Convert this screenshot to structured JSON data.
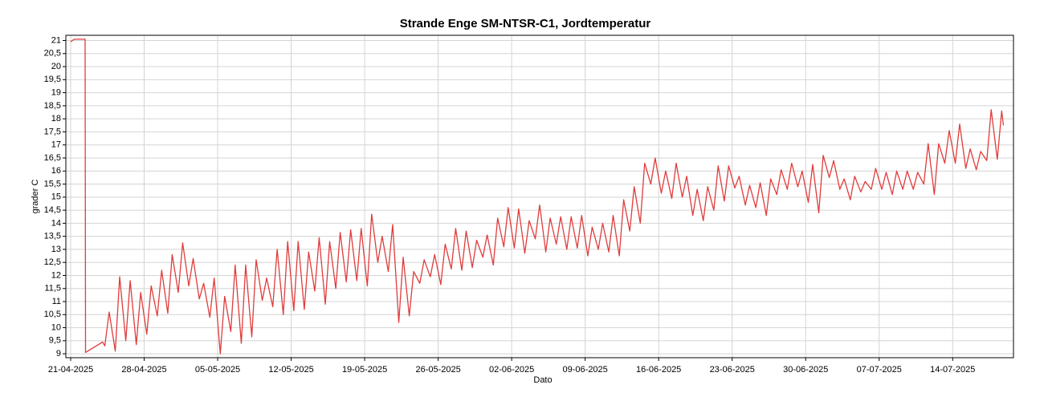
{
  "chart_data": {
    "type": "line",
    "title": "Strande Enge SM-NTSR-C1, Jordtemperatur",
    "xlabel": "Dato",
    "ylabel": "grader C",
    "x": [
      "2025-04-21 00:00",
      "2025-04-21 08:00",
      "2025-04-22 09:00",
      "2025-04-22 10:00",
      "2025-04-24 01:00",
      "2025-04-24 06:00",
      "2025-04-24 16:00",
      "2025-04-25 06:00",
      "2025-04-25 16:00",
      "2025-04-26 06:00",
      "2025-04-26 16:00",
      "2025-04-27 06:00",
      "2025-04-27 16:00",
      "2025-04-28 06:00",
      "2025-04-28 16:00",
      "2025-04-29 06:00",
      "2025-04-29 16:00",
      "2025-04-30 06:00",
      "2025-04-30 16:00",
      "2025-05-01 06:00",
      "2025-05-01 16:00",
      "2025-05-02 06:00",
      "2025-05-02 16:00",
      "2025-05-03 06:00",
      "2025-05-03 16:00",
      "2025-05-04 06:00",
      "2025-05-04 16:00",
      "2025-05-05 06:00",
      "2025-05-05 16:00",
      "2025-05-06 06:00",
      "2025-05-06 16:00",
      "2025-05-07 06:00",
      "2025-05-07 16:00",
      "2025-05-08 06:00",
      "2025-05-08 16:00",
      "2025-05-09 06:00",
      "2025-05-09 16:00",
      "2025-05-10 06:00",
      "2025-05-10 16:00",
      "2025-05-11 06:00",
      "2025-05-11 16:00",
      "2025-05-12 06:00",
      "2025-05-12 16:00",
      "2025-05-13 06:00",
      "2025-05-13 16:00",
      "2025-05-14 06:00",
      "2025-05-14 16:00",
      "2025-05-15 06:00",
      "2025-05-15 16:00",
      "2025-05-16 06:00",
      "2025-05-16 16:00",
      "2025-05-17 06:00",
      "2025-05-17 16:00",
      "2025-05-18 06:00",
      "2025-05-18 16:00",
      "2025-05-19 06:00",
      "2025-05-19 16:00",
      "2025-05-20 06:00",
      "2025-05-20 16:00",
      "2025-05-21 06:00",
      "2025-05-21 16:00",
      "2025-05-22 06:00",
      "2025-05-22 16:00",
      "2025-05-23 06:00",
      "2025-05-23 16:00",
      "2025-05-24 06:00",
      "2025-05-24 16:00",
      "2025-05-25 06:00",
      "2025-05-25 16:00",
      "2025-05-26 06:00",
      "2025-05-26 16:00",
      "2025-05-27 06:00",
      "2025-05-27 16:00",
      "2025-05-28 06:00",
      "2025-05-28 16:00",
      "2025-05-29 06:00",
      "2025-05-29 16:00",
      "2025-05-30 06:00",
      "2025-05-30 16:00",
      "2025-05-31 06:00",
      "2025-05-31 16:00",
      "2025-06-01 06:00",
      "2025-06-01 16:00",
      "2025-06-02 06:00",
      "2025-06-02 16:00",
      "2025-06-03 06:00",
      "2025-06-03 16:00",
      "2025-06-04 06:00",
      "2025-06-04 16:00",
      "2025-06-05 06:00",
      "2025-06-05 16:00",
      "2025-06-06 06:00",
      "2025-06-06 16:00",
      "2025-06-07 06:00",
      "2025-06-07 16:00",
      "2025-06-08 06:00",
      "2025-06-08 16:00",
      "2025-06-09 06:00",
      "2025-06-09 16:00",
      "2025-06-10 06:00",
      "2025-06-10 16:00",
      "2025-06-11 06:00",
      "2025-06-11 16:00",
      "2025-06-12 06:00",
      "2025-06-12 16:00",
      "2025-06-13 06:00",
      "2025-06-13 16:00",
      "2025-06-14 06:00",
      "2025-06-14 16:00",
      "2025-06-15 06:00",
      "2025-06-15 16:00",
      "2025-06-16 06:00",
      "2025-06-16 16:00",
      "2025-06-17 06:00",
      "2025-06-17 16:00",
      "2025-06-18 06:00",
      "2025-06-18 16:00",
      "2025-06-19 06:00",
      "2025-06-19 16:00",
      "2025-06-20 06:00",
      "2025-06-20 16:00",
      "2025-06-21 06:00",
      "2025-06-21 16:00",
      "2025-06-22 06:00",
      "2025-06-22 16:00",
      "2025-06-23 06:00",
      "2025-06-23 16:00",
      "2025-06-24 06:00",
      "2025-06-24 16:00",
      "2025-06-25 06:00",
      "2025-06-25 16:00",
      "2025-06-26 06:00",
      "2025-06-26 16:00",
      "2025-06-27 06:00",
      "2025-06-27 16:00",
      "2025-06-28 06:00",
      "2025-06-28 16:00",
      "2025-06-29 06:00",
      "2025-06-29 16:00",
      "2025-06-30 06:00",
      "2025-06-30 16:00",
      "2025-07-01 06:00",
      "2025-07-01 16:00",
      "2025-07-02 06:00",
      "2025-07-02 16:00",
      "2025-07-03 06:00",
      "2025-07-03 16:00",
      "2025-07-04 06:00",
      "2025-07-04 16:00",
      "2025-07-05 06:00",
      "2025-07-05 16:00",
      "2025-07-06 06:00",
      "2025-07-06 16:00",
      "2025-07-07 06:00",
      "2025-07-07 16:00",
      "2025-07-08 06:00",
      "2025-07-08 16:00",
      "2025-07-09 06:00",
      "2025-07-09 16:00",
      "2025-07-10 06:00",
      "2025-07-10 16:00",
      "2025-07-11 06:00",
      "2025-07-11 16:00",
      "2025-07-12 06:00",
      "2025-07-12 16:00",
      "2025-07-13 06:00",
      "2025-07-13 16:00",
      "2025-07-14 06:00",
      "2025-07-14 16:00",
      "2025-07-15 06:00",
      "2025-07-15 16:00",
      "2025-07-16 06:00",
      "2025-07-16 16:00",
      "2025-07-17 06:00",
      "2025-07-17 16:00",
      "2025-07-18 06:00",
      "2025-07-18 16:00",
      "2025-07-18 20:00"
    ],
    "series": [
      {
        "color": "#e03c3c",
        "values": [
          20.95,
          21.05,
          21.05,
          9.05,
          9.45,
          9.3,
          10.6,
          9.1,
          11.95,
          9.5,
          11.8,
          9.35,
          11.35,
          9.75,
          11.6,
          10.45,
          12.2,
          10.55,
          12.8,
          11.35,
          13.25,
          11.6,
          12.65,
          11.1,
          11.7,
          10.4,
          11.9,
          9.0,
          11.2,
          9.85,
          12.4,
          9.4,
          12.4,
          9.65,
          12.6,
          11.05,
          11.9,
          10.8,
          13.0,
          10.5,
          13.3,
          10.65,
          13.3,
          10.7,
          12.9,
          11.4,
          13.45,
          10.9,
          13.3,
          11.5,
          13.65,
          11.75,
          13.75,
          11.8,
          13.8,
          11.6,
          14.35,
          12.5,
          13.5,
          12.15,
          13.95,
          10.2,
          12.7,
          10.45,
          12.15,
          11.7,
          12.6,
          11.95,
          12.8,
          11.65,
          13.2,
          12.25,
          13.8,
          12.2,
          13.7,
          12.3,
          13.35,
          12.7,
          13.55,
          12.4,
          14.2,
          13.1,
          14.6,
          13.05,
          14.55,
          12.85,
          14.1,
          13.4,
          14.7,
          12.9,
          14.2,
          13.2,
          14.25,
          13.0,
          14.25,
          13.05,
          14.3,
          12.75,
          13.85,
          13.0,
          14.0,
          12.9,
          14.3,
          12.75,
          14.9,
          13.7,
          15.4,
          14.0,
          16.3,
          15.5,
          16.5,
          15.15,
          16.0,
          14.95,
          16.3,
          15.0,
          15.8,
          14.3,
          15.3,
          14.1,
          15.4,
          14.5,
          16.2,
          14.85,
          16.2,
          15.35,
          15.8,
          14.7,
          15.45,
          14.6,
          15.55,
          14.3,
          15.7,
          15.1,
          16.05,
          15.3,
          16.3,
          15.4,
          16.0,
          14.8,
          16.25,
          14.4,
          16.6,
          15.75,
          16.4,
          15.3,
          15.7,
          14.9,
          15.8,
          15.2,
          15.6,
          15.3,
          16.1,
          15.3,
          15.95,
          15.1,
          16.0,
          15.3,
          16.0,
          15.3,
          15.95,
          15.5,
          17.05,
          15.1,
          17.05,
          16.3,
          17.55,
          16.3,
          17.8,
          16.1,
          16.85,
          16.05,
          16.75,
          16.4,
          18.35,
          16.45,
          18.3,
          17.75
        ]
      }
    ],
    "xlim": [
      "2025-04-20 13:00",
      "2025-07-19 19:00"
    ],
    "xticks": [
      {
        "value": "2025-04-21 00:00",
        "label": "21-04-2025"
      },
      {
        "value": "2025-04-28 00:00",
        "label": "28-04-2025"
      },
      {
        "value": "2025-05-05 00:00",
        "label": "05-05-2025"
      },
      {
        "value": "2025-05-12 00:00",
        "label": "12-05-2025"
      },
      {
        "value": "2025-05-19 00:00",
        "label": "19-05-2025"
      },
      {
        "value": "2025-05-26 00:00",
        "label": "26-05-2025"
      },
      {
        "value": "2025-06-02 00:00",
        "label": "02-06-2025"
      },
      {
        "value": "2025-06-09 00:00",
        "label": "09-06-2025"
      },
      {
        "value": "2025-06-16 00:00",
        "label": "16-06-2025"
      },
      {
        "value": "2025-06-23 00:00",
        "label": "23-06-2025"
      },
      {
        "value": "2025-06-30 00:00",
        "label": "30-06-2025"
      },
      {
        "value": "2025-07-07 00:00",
        "label": "07-07-2025"
      },
      {
        "value": "2025-07-14 00:00",
        "label": "14-07-2025"
      }
    ],
    "ylim": [
      8.85,
      21.2
    ],
    "yticks": [
      9,
      {
        "value": 9.5,
        "label": "9,5"
      },
      10,
      {
        "value": 10.5,
        "label": "10,5"
      },
      11,
      {
        "value": 11.5,
        "label": "11,5"
      },
      12,
      {
        "value": 12.5,
        "label": "12,5"
      },
      13,
      {
        "value": 13.5,
        "label": "13,5"
      },
      14,
      {
        "value": 14.5,
        "label": "14,5"
      },
      15,
      {
        "value": 15.5,
        "label": "15,5"
      },
      16,
      {
        "value": 16.5,
        "label": "16,5"
      },
      17,
      {
        "value": 17.5,
        "label": "17,5"
      },
      18,
      {
        "value": 18.5,
        "label": "18,5"
      },
      19,
      {
        "value": 19.5,
        "label": "19,5"
      },
      20,
      {
        "value": 20.5,
        "label": "20,5"
      },
      21
    ],
    "grid": true
  }
}
